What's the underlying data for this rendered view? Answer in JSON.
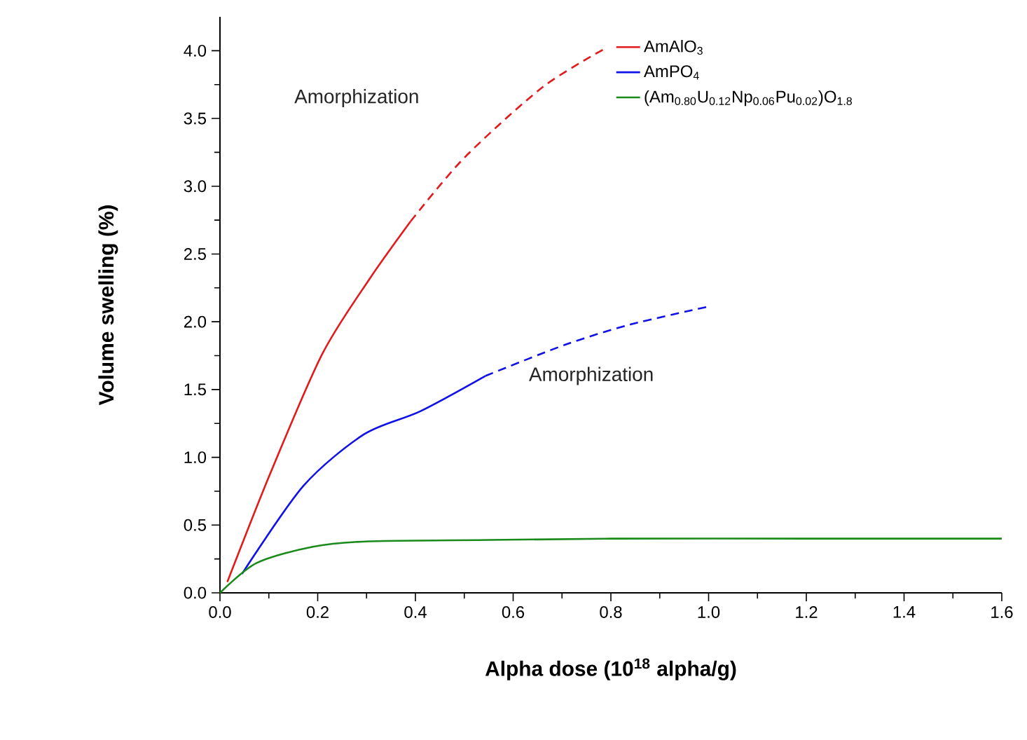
{
  "chart_data": {
    "type": "line",
    "xlabel": "Alpha dose (10$^{18}$ alpha/g)",
    "ylabel": "Volume swelling (%)",
    "xlim": [
      0,
      1.6
    ],
    "xticks": [
      {
        "value": 0,
        "label": "0.0"
      },
      0.2,
      0.4,
      0.6,
      0.8,
      {
        "value": 1,
        "label": "1.0"
      },
      1.2,
      1.4,
      1.6
    ],
    "ylim": [
      0,
      4.25
    ],
    "yticks": [
      {
        "value": 0,
        "label": "0.0"
      },
      0.5,
      {
        "value": 1,
        "label": "1.0"
      },
      1.5,
      {
        "value": 2,
        "label": "2.0"
      },
      2.5,
      {
        "value": 3,
        "label": "3.0"
      },
      3.5,
      {
        "value": 4,
        "label": "4.0"
      }
    ],
    "legend": "top right",
    "grid": false,
    "series": [
      {
        "name": "AmAlO$_{3}$",
        "color": "#e31a1c",
        "line_style": "solid",
        "x": [
          0.015,
          0.104,
          0.209,
          0.305,
          0.39
        ],
        "values": [
          0.08,
          0.89,
          1.76,
          2.31,
          2.74
        ]
      },
      {
        "color": "#e31a1c",
        "line_style": "dashed",
        "x": [
          0.39,
          0.5,
          0.66,
          0.79
        ],
        "values": [
          2.74,
          3.21,
          3.73,
          4.02
        ]
      },
      {
        "name": "AmPO$_{4}$",
        "color": "#1010e8",
        "line_style": "solid",
        "x": [
          0.045,
          0.171,
          0.295,
          0.41,
          0.543
        ],
        "values": [
          0.14,
          0.79,
          1.17,
          1.34,
          1.6
        ]
      },
      {
        "color": "#1010e8",
        "line_style": "dashed",
        "x": [
          0.543,
          0.706,
          0.84,
          0.997
        ],
        "values": [
          1.6,
          1.83,
          1.98,
          2.11
        ]
      },
      {
        "name": "(Am$_{0.80}$U$_{0.12}$Np$_{0.06}$Pu$_{0.02}$)O$_{1.8}$",
        "color": "#1a8a1a",
        "line_style": "solid",
        "x": [
          0,
          0.075,
          0.19,
          0.305,
          0.55,
          0.8,
          1.2,
          1.6
        ],
        "values": [
          0,
          0.22,
          0.34,
          0.38,
          0.39,
          0.4,
          0.4,
          0.4
        ]
      }
    ],
    "annotations": [
      "Amorphization",
      "Amorphization"
    ]
  }
}
